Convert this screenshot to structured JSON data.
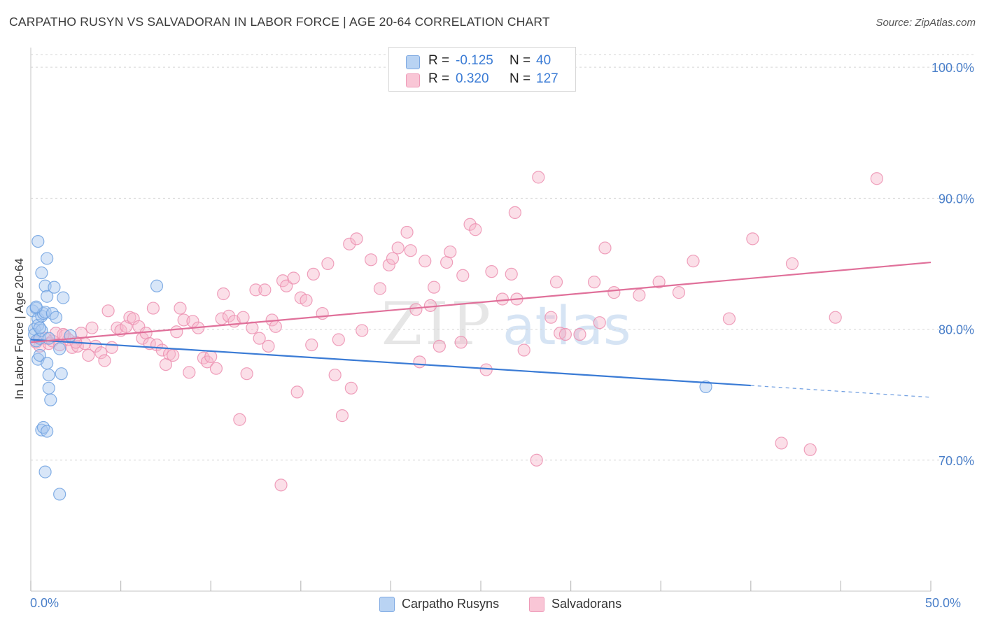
{
  "title": "CARPATHO RUSYN VS SALVADORAN IN LABOR FORCE | AGE 20-64 CORRELATION CHART",
  "source": "Source: ZipAtlas.com",
  "watermark": {
    "zip": "ZIP",
    "atlas": "atlas"
  },
  "legend": {
    "rows": [
      {
        "r_label": "R =",
        "r_value": "-0.125",
        "n_label": "N =",
        "n_value": "40",
        "color": "#5b9bd5"
      },
      {
        "r_label": "R =",
        "r_value": "0.320",
        "n_label": "N =",
        "n_value": "127",
        "color": "#f08cb0"
      }
    ]
  },
  "colors": {
    "blue_fill": "#a9c8f0",
    "blue_stroke": "#6ea1e0",
    "blue_line": "#3a7bd5",
    "pink_fill": "#f7b9cd",
    "pink_stroke": "#ec8fb0",
    "pink_line": "#e0709a",
    "axis_text": "#4a7fc9",
    "grid": "#d5d5d5"
  },
  "chart_data": {
    "type": "scatter",
    "title": "CARPATHO RUSYN VS SALVADORAN IN LABOR FORCE | AGE 20-64 CORRELATION CHART",
    "xlabel": "",
    "ylabel": "In Labor Force | Age 20-64",
    "xlim": [
      0,
      50
    ],
    "ylim": [
      60,
      101.5
    ],
    "x_tick_labels": {
      "left": "0.0%",
      "right": "50.0%"
    },
    "y_ticks": [
      {
        "value": 70,
        "label": "70.0%"
      },
      {
        "value": 80,
        "label": "80.0%"
      },
      {
        "value": 90,
        "label": "90.0%"
      },
      {
        "value": 100,
        "label": "100.0%"
      }
    ],
    "series": [
      {
        "name": "Carpatho Rusyns",
        "color": "#6ea1e0",
        "trend": {
          "x0": 0,
          "y0": 79.2,
          "x1": 40,
          "y1": 75.7,
          "dash_to_x": 50,
          "dash_to_y": 74.8
        },
        "points": [
          [
            0.1,
            81.4
          ],
          [
            0.2,
            80.0
          ],
          [
            0.2,
            79.6
          ],
          [
            0.3,
            79.1
          ],
          [
            0.3,
            81.6
          ],
          [
            0.4,
            80.8
          ],
          [
            0.4,
            80.3
          ],
          [
            0.4,
            77.7
          ],
          [
            0.5,
            78.0
          ],
          [
            0.5,
            79.3
          ],
          [
            0.6,
            79.9
          ],
          [
            0.6,
            81.0
          ],
          [
            0.7,
            81.2
          ],
          [
            0.8,
            81.3
          ],
          [
            0.9,
            77.4
          ],
          [
            1.0,
            76.5
          ],
          [
            1.0,
            75.5
          ],
          [
            1.1,
            74.6
          ],
          [
            0.4,
            86.7
          ],
          [
            0.6,
            84.3
          ],
          [
            0.9,
            85.4
          ],
          [
            0.8,
            83.3
          ],
          [
            1.3,
            83.2
          ],
          [
            0.9,
            82.5
          ],
          [
            1.8,
            82.4
          ],
          [
            1.2,
            81.2
          ],
          [
            1.4,
            80.9
          ],
          [
            1.6,
            78.5
          ],
          [
            1.7,
            76.6
          ],
          [
            0.6,
            72.3
          ],
          [
            0.7,
            72.5
          ],
          [
            0.9,
            72.2
          ],
          [
            0.8,
            69.1
          ],
          [
            1.6,
            67.4
          ],
          [
            2.2,
            79.5
          ],
          [
            7.0,
            83.3
          ],
          [
            37.5,
            75.6
          ],
          [
            0.3,
            81.7
          ],
          [
            0.5,
            80.1
          ],
          [
            1.0,
            79.3
          ]
        ]
      },
      {
        "name": "Salvadorans",
        "color": "#ec8fb0",
        "trend": {
          "x0": 0,
          "y0": 79.0,
          "x1": 50,
          "y1": 85.1
        },
        "points": [
          [
            0.3,
            79.0
          ],
          [
            0.5,
            78.7
          ],
          [
            0.8,
            79.3
          ],
          [
            1.0,
            78.9
          ],
          [
            1.2,
            79.1
          ],
          [
            1.4,
            79.7
          ],
          [
            1.6,
            78.8
          ],
          [
            1.9,
            79.5
          ],
          [
            2.1,
            79.2
          ],
          [
            2.3,
            78.6
          ],
          [
            2.6,
            78.7
          ],
          [
            2.8,
            79.7
          ],
          [
            3.0,
            78.9
          ],
          [
            3.2,
            78.0
          ],
          [
            3.4,
            80.1
          ],
          [
            3.6,
            78.7
          ],
          [
            3.9,
            78.2
          ],
          [
            4.1,
            77.6
          ],
          [
            4.3,
            81.4
          ],
          [
            4.5,
            78.6
          ],
          [
            4.8,
            80.1
          ],
          [
            5.0,
            79.9
          ],
          [
            5.3,
            80.2
          ],
          [
            5.5,
            80.9
          ],
          [
            5.7,
            80.8
          ],
          [
            6.0,
            80.2
          ],
          [
            6.2,
            79.3
          ],
          [
            6.4,
            79.7
          ],
          [
            6.6,
            78.9
          ],
          [
            6.8,
            81.6
          ],
          [
            7.0,
            78.8
          ],
          [
            7.3,
            78.4
          ],
          [
            7.5,
            77.3
          ],
          [
            7.7,
            78.1
          ],
          [
            7.9,
            78.0
          ],
          [
            8.1,
            79.8
          ],
          [
            8.3,
            81.6
          ],
          [
            8.5,
            80.7
          ],
          [
            8.8,
            76.7
          ],
          [
            9.0,
            80.6
          ],
          [
            9.3,
            80.1
          ],
          [
            9.6,
            77.8
          ],
          [
            9.8,
            77.5
          ],
          [
            10.0,
            77.9
          ],
          [
            10.3,
            77.0
          ],
          [
            10.6,
            80.8
          ],
          [
            10.7,
            82.7
          ],
          [
            11.0,
            81.0
          ],
          [
            11.3,
            80.6
          ],
          [
            11.6,
            73.1
          ],
          [
            11.8,
            80.9
          ],
          [
            12.0,
            76.6
          ],
          [
            12.3,
            80.1
          ],
          [
            12.5,
            83.0
          ],
          [
            12.7,
            79.3
          ],
          [
            13.0,
            83.0
          ],
          [
            13.2,
            78.7
          ],
          [
            13.4,
            80.7
          ],
          [
            13.6,
            80.2
          ],
          [
            13.9,
            68.1
          ],
          [
            14.0,
            83.7
          ],
          [
            14.2,
            83.3
          ],
          [
            14.6,
            83.9
          ],
          [
            14.8,
            75.2
          ],
          [
            15.0,
            82.4
          ],
          [
            15.3,
            82.2
          ],
          [
            15.6,
            78.8
          ],
          [
            15.7,
            84.2
          ],
          [
            16.2,
            81.2
          ],
          [
            16.5,
            85.0
          ],
          [
            16.9,
            76.5
          ],
          [
            17.1,
            79.2
          ],
          [
            17.3,
            73.4
          ],
          [
            17.7,
            86.5
          ],
          [
            17.8,
            75.5
          ],
          [
            18.1,
            86.9
          ],
          [
            18.4,
            79.9
          ],
          [
            18.9,
            85.3
          ],
          [
            19.4,
            83.1
          ],
          [
            19.9,
            84.9
          ],
          [
            20.1,
            85.4
          ],
          [
            20.4,
            86.2
          ],
          [
            20.9,
            87.4
          ],
          [
            21.1,
            86.0
          ],
          [
            21.4,
            81.5
          ],
          [
            21.6,
            77.5
          ],
          [
            21.9,
            85.2
          ],
          [
            22.2,
            81.8
          ],
          [
            22.4,
            83.2
          ],
          [
            22.7,
            78.7
          ],
          [
            23.1,
            85.1
          ],
          [
            23.3,
            85.9
          ],
          [
            23.9,
            79.0
          ],
          [
            24.0,
            84.1
          ],
          [
            24.4,
            88.0
          ],
          [
            24.7,
            87.6
          ],
          [
            25.3,
            76.9
          ],
          [
            25.6,
            84.4
          ],
          [
            26.2,
            82.3
          ],
          [
            26.7,
            84.2
          ],
          [
            26.9,
            88.9
          ],
          [
            27.0,
            82.3
          ],
          [
            27.4,
            78.4
          ],
          [
            28.1,
            70.0
          ],
          [
            28.2,
            91.6
          ],
          [
            28.9,
            80.9
          ],
          [
            29.2,
            83.6
          ],
          [
            29.4,
            79.7
          ],
          [
            29.7,
            79.6
          ],
          [
            30.5,
            79.6
          ],
          [
            31.3,
            83.6
          ],
          [
            31.6,
            80.5
          ],
          [
            31.9,
            86.2
          ],
          [
            32.4,
            82.8
          ],
          [
            33.8,
            82.6
          ],
          [
            34.9,
            83.6
          ],
          [
            36.0,
            82.8
          ],
          [
            36.8,
            85.2
          ],
          [
            38.8,
            80.8
          ],
          [
            40.1,
            86.9
          ],
          [
            41.7,
            71.3
          ],
          [
            42.3,
            85.0
          ],
          [
            43.3,
            70.8
          ],
          [
            44.7,
            80.9
          ],
          [
            47.0,
            91.5
          ],
          [
            1.8,
            79.6
          ],
          [
            2.5,
            79.0
          ]
        ]
      }
    ]
  },
  "bottom_legend": [
    {
      "label": "Carpatho Rusyns",
      "color": "#a9c8f0"
    },
    {
      "label": "Salvadorans",
      "color": "#f7b9cd"
    }
  ]
}
